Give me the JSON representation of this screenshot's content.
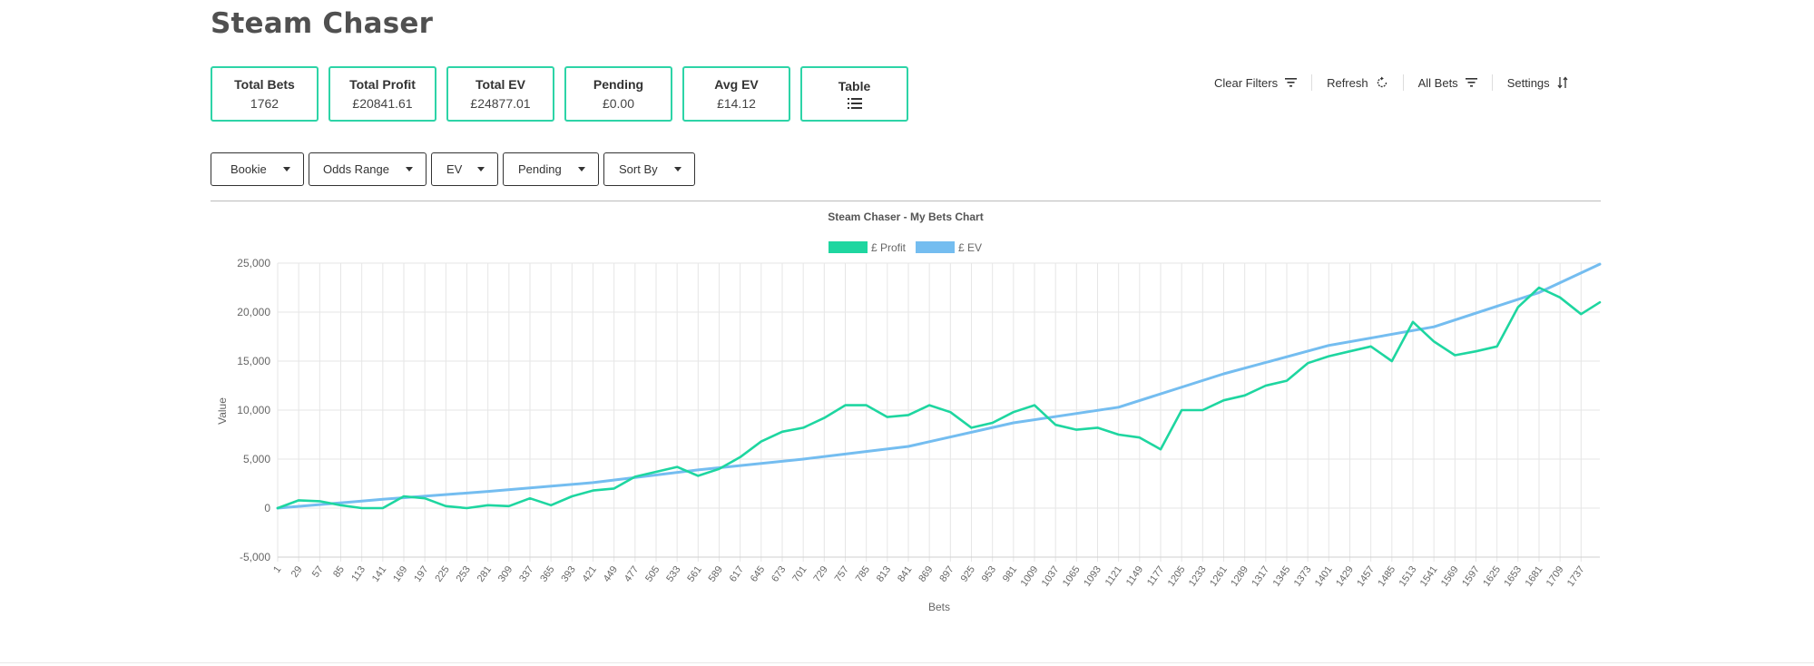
{
  "app": {
    "title": "Steam Chaser"
  },
  "stats": [
    {
      "label": "Total Bets",
      "value": "1762"
    },
    {
      "label": "Total Profit",
      "value": "£20841.61"
    },
    {
      "label": "Total EV",
      "value": "£24877.01"
    },
    {
      "label": "Pending",
      "value": "£0.00"
    },
    {
      "label": "Avg EV",
      "value": "£14.12"
    },
    {
      "label": "Table",
      "icon": "list-icon"
    }
  ],
  "toolbar": {
    "clear_filters": {
      "label": "Clear Filters",
      "icon": "filter-icon"
    },
    "refresh": {
      "label": "Refresh",
      "icon": "refresh-icon"
    },
    "all_bets": {
      "label": "All Bets",
      "icon": "filter-icon"
    },
    "settings": {
      "label": "Settings",
      "icon": "sort-icon"
    }
  },
  "filters": [
    {
      "label": "Bookie",
      "icon": "caret-down-icon"
    },
    {
      "label": "Odds Range",
      "icon": "caret-down-icon"
    },
    {
      "label": "EV",
      "icon": "caret-down-icon"
    },
    {
      "label": "Pending",
      "icon": "caret-down-icon"
    },
    {
      "label": "Sort By",
      "icon": "caret-down-icon"
    }
  ],
  "colors": {
    "accent": "#2dd4a7",
    "profit_line": "#1ed6a0",
    "ev_line": "#74bdf0"
  },
  "chart_data": {
    "type": "line",
    "title": "Steam Chaser - My Bets Chart",
    "xlabel": "Bets",
    "ylabel": "Value",
    "ylim": [
      -5000,
      25000
    ],
    "yticks": [
      -5000,
      0,
      5000,
      10000,
      15000,
      20000,
      25000
    ],
    "ytick_labels": [
      "-5,000",
      "0",
      "5,000",
      "10,000",
      "15,000",
      "20,000",
      "25,000"
    ],
    "xlim": [
      1,
      1762
    ],
    "xticks": [
      1,
      29,
      57,
      85,
      113,
      141,
      169,
      197,
      225,
      253,
      281,
      309,
      337,
      365,
      393,
      421,
      449,
      477,
      505,
      533,
      561,
      589,
      617,
      645,
      673,
      701,
      729,
      757,
      785,
      813,
      841,
      869,
      897,
      925,
      953,
      981,
      1009,
      1037,
      1065,
      1093,
      1121,
      1149,
      1177,
      1205,
      1233,
      1261,
      1289,
      1317,
      1345,
      1373,
      1401,
      1429,
      1457,
      1485,
      1513,
      1541,
      1569,
      1597,
      1625,
      1653,
      1681,
      1709,
      1737
    ],
    "grid": true,
    "legend_position": "top-center",
    "series": [
      {
        "name": "£ Profit",
        "color": "#1ed6a0",
        "x": [
          1,
          29,
          57,
          85,
          113,
          141,
          169,
          197,
          225,
          253,
          281,
          309,
          337,
          365,
          393,
          421,
          449,
          477,
          505,
          533,
          561,
          589,
          617,
          645,
          673,
          701,
          729,
          757,
          785,
          813,
          841,
          869,
          897,
          925,
          953,
          981,
          1009,
          1037,
          1065,
          1093,
          1121,
          1149,
          1177,
          1205,
          1233,
          1261,
          1289,
          1317,
          1345,
          1373,
          1401,
          1429,
          1457,
          1485,
          1513,
          1541,
          1569,
          1597,
          1625,
          1653,
          1681,
          1709,
          1737,
          1762
        ],
        "y": [
          0,
          800,
          700,
          300,
          0,
          0,
          1200,
          1000,
          200,
          0,
          300,
          200,
          1000,
          300,
          1200,
          1800,
          2000,
          3200,
          3700,
          4200,
          3300,
          4000,
          5200,
          6800,
          7800,
          8200,
          9200,
          10500,
          10500,
          9300,
          9500,
          10500,
          9800,
          8200,
          8700,
          9800,
          10500,
          8500,
          8000,
          8200,
          7500,
          7200,
          6000,
          10000,
          10000,
          11000,
          11500,
          12500,
          13000,
          14800,
          15500,
          16000,
          16500,
          15000,
          19000,
          17000,
          15600,
          16000,
          16500,
          20500,
          22500,
          21500,
          19800,
          21000
        ]
      },
      {
        "name": "£ EV",
        "color": "#74bdf0",
        "x": [
          1,
          141,
          281,
          421,
          561,
          701,
          841,
          981,
          1121,
          1261,
          1401,
          1541,
          1681,
          1762
        ],
        "y": [
          0,
          900,
          1700,
          2600,
          3900,
          5000,
          6300,
          8700,
          10300,
          13700,
          16600,
          18500,
          22000,
          24900
        ]
      }
    ]
  }
}
